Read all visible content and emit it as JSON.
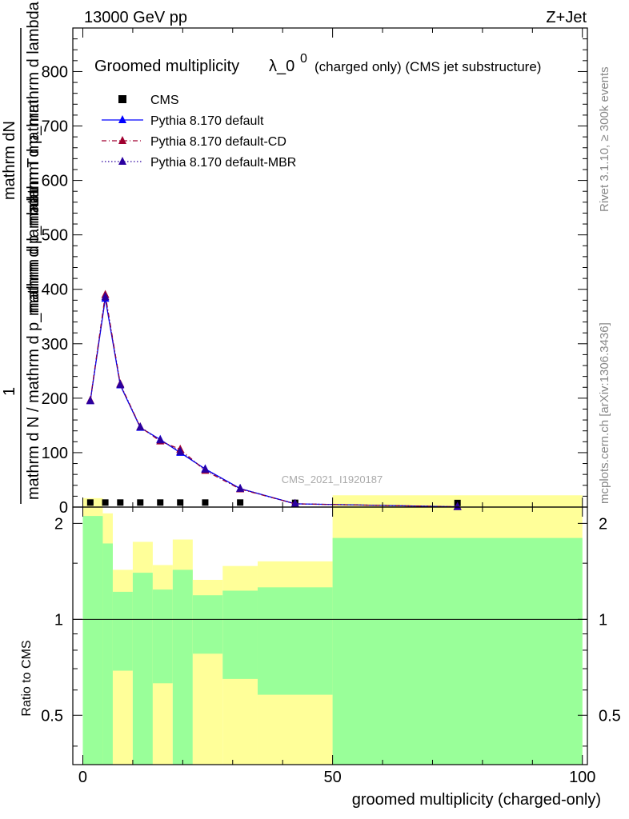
{
  "header": {
    "left_label": "13000 GeV pp",
    "right_label": "Z+Jet"
  },
  "plot_title": {
    "main": "Groomed multiplicity",
    "lambda_text": "λ_0",
    "superscript": "0",
    "suffix": "(charged only) (CMS jet substructure)"
  },
  "side_labels": {
    "rivet": "Rivet 3.1.10, ≥ 300k events",
    "mcplots": "mcplots.cern.ch [arXiv:1306.3436]"
  },
  "watermark": "CMS_2021_I1920187",
  "ylabel_top": {
    "line1": "mathrm dN",
    "line2": "mathrm d p_mathrm d lambda",
    "line3": "mathrm d p_mathrm T mathrm",
    "frac_num": "1",
    "frac_den": "mathrm d N / mathrm d p_mathrm d lambda"
  },
  "ylabel_bottom": "Ratio to CMS",
  "xlabel": "groomed multiplicity (charged-only)",
  "legend": [
    {
      "label": "CMS",
      "color": "#000000",
      "marker": "square",
      "line": "none"
    },
    {
      "label": "Pythia 8.170 default",
      "color": "#0000ff",
      "marker": "triangle",
      "line": "solid"
    },
    {
      "label": "Pythia 8.170 default-CD",
      "color": "#a00030",
      "marker": "triangle",
      "line": "dashdot"
    },
    {
      "label": "Pythia 8.170 default-MBR",
      "color": "#2a00a0",
      "marker": "triangle",
      "line": "dotted"
    }
  ],
  "chart_data": {
    "type": "line",
    "xlim": [
      -2,
      101
    ],
    "ylim_top": [
      0,
      880
    ],
    "ylim_ratio": [
      0.35,
      2.25
    ],
    "x_ticks": [
      0,
      50,
      100
    ],
    "y_ticks_top": [
      0,
      100,
      200,
      300,
      400,
      500,
      600,
      700,
      800
    ],
    "y_ticks_ratio": [
      0.5,
      1,
      2
    ],
    "grid": false,
    "legend_position": "top-left",
    "series": [
      {
        "name": "CMS",
        "x": [
          1.5,
          4.5,
          7.5,
          11.5,
          15.5,
          19.5,
          24.5,
          31.5,
          42.5,
          75
        ],
        "y": [
          1,
          1,
          1,
          1,
          1,
          1,
          1,
          1,
          0.5,
          0.2
        ]
      },
      {
        "name": "Pythia 8.170 default",
        "x": [
          1.5,
          4.5,
          7.5,
          11.5,
          15.5,
          19.5,
          24.5,
          31.5,
          42.5,
          75
        ],
        "y": [
          195,
          383,
          224,
          146,
          124,
          100,
          70,
          34,
          6,
          0.5
        ]
      },
      {
        "name": "Pythia 8.170 default-CD",
        "x": [
          1.5,
          4.5,
          7.5,
          11.5,
          15.5,
          19.5,
          24.5,
          31.5,
          42.5,
          75
        ],
        "y": [
          196,
          390,
          226,
          147,
          121,
          106,
          67,
          33,
          6,
          0.5
        ]
      },
      {
        "name": "Pythia 8.170 default-MBR",
        "x": [
          1.5,
          4.5,
          7.5,
          11.5,
          15.5,
          19.5,
          24.5,
          31.5,
          42.5,
          75
        ],
        "y": [
          195,
          386,
          225,
          147,
          123,
          102,
          69,
          34,
          6,
          0.5
        ]
      }
    ],
    "ratio_bands": {
      "bin_edges": [
        0,
        4,
        6,
        10,
        14,
        18,
        22,
        28,
        35,
        50,
        100
      ],
      "green_upper": [
        2.11,
        1.73,
        1.22,
        1.4,
        1.24,
        1.43,
        1.19,
        1.23,
        1.26,
        1.8
      ],
      "green_lower": [
        0.0,
        0.0,
        0.69,
        0.0,
        0.63,
        0.0,
        0.78,
        0.65,
        0.58,
        0.0
      ],
      "yellow_upper": [
        2.4,
        2.15,
        1.43,
        1.75,
        1.48,
        1.78,
        1.33,
        1.47,
        1.52,
        2.45
      ],
      "yellow_lower": [
        0.0,
        0.0,
        0.0,
        0.0,
        0.0,
        0.0,
        0.0,
        0.0,
        0.0,
        0.0
      ],
      "reference_line": 1
    },
    "colors": {
      "green": "#99ff99",
      "yellow": "#ffff99"
    }
  }
}
